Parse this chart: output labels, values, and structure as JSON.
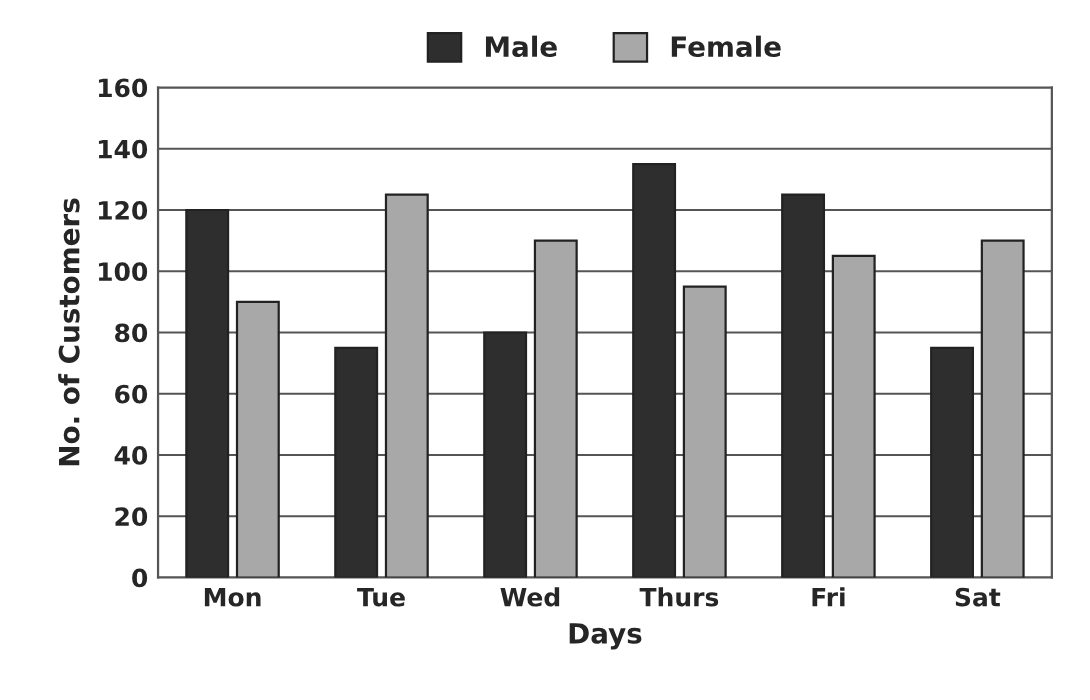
{
  "chart_data": {
    "type": "bar",
    "xlabel": "Days",
    "ylabel": "No. of Customers",
    "categories": [
      "Mon",
      "Tue",
      "Wed",
      "Thurs",
      "Fri",
      "Sat"
    ],
    "series": [
      {
        "name": "Male",
        "color": "#2e2e2e",
        "values": [
          120,
          75,
          80,
          135,
          125,
          75
        ]
      },
      {
        "name": "Female",
        "color": "#a8a8a8",
        "values": [
          90,
          125,
          110,
          95,
          105,
          110
        ]
      }
    ],
    "ylim": [
      0,
      160
    ],
    "yticks": [
      0,
      20,
      40,
      60,
      80,
      100,
      120,
      140,
      160
    ],
    "grid": "y",
    "legend": "top"
  }
}
